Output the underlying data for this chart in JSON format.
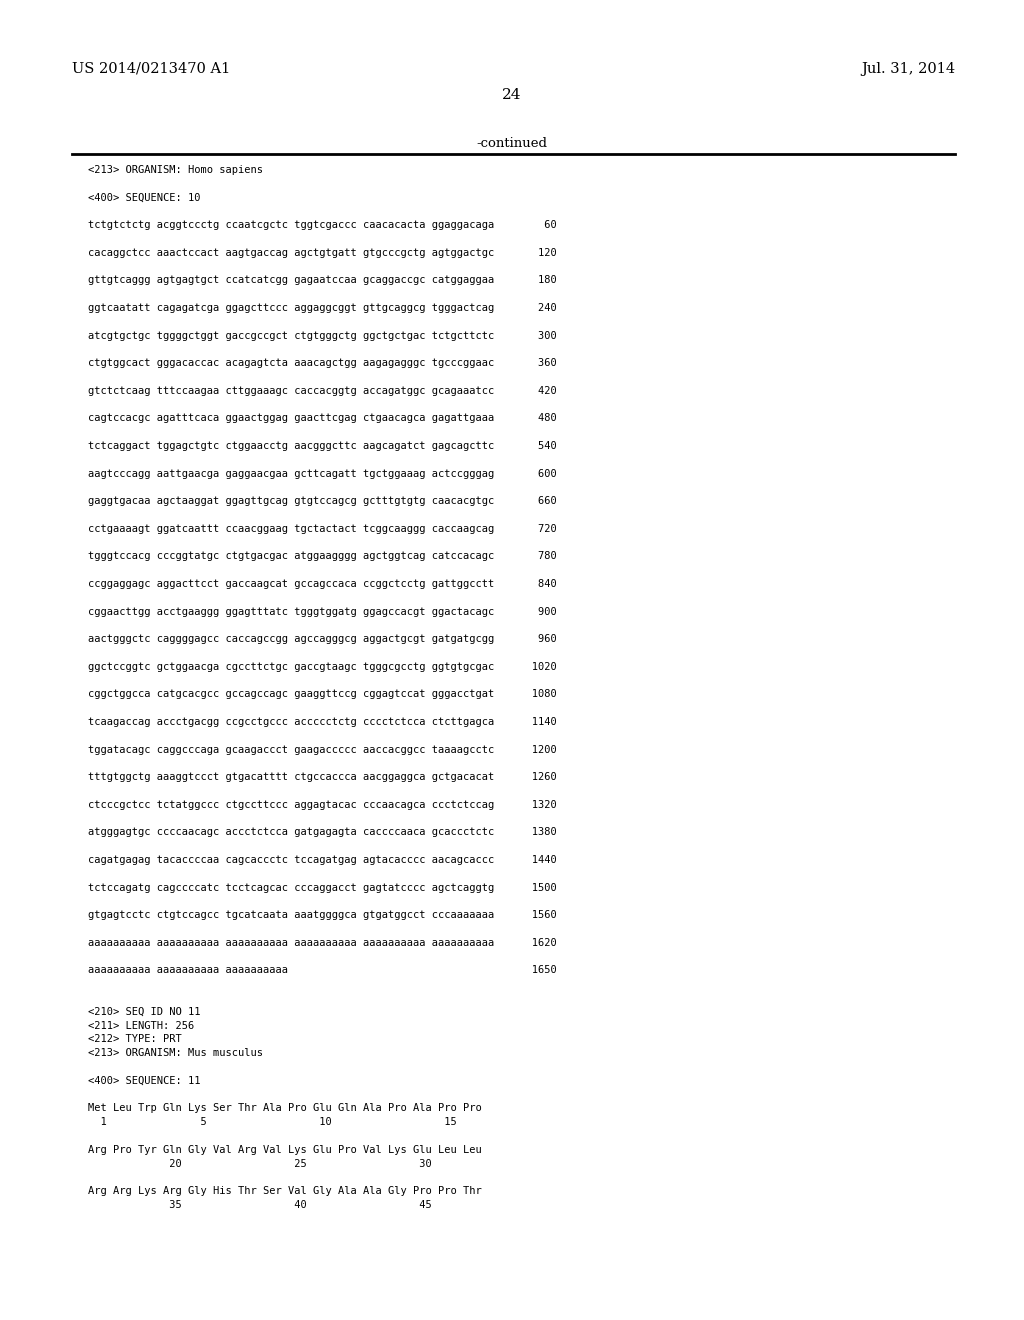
{
  "header_left": "US 2014/0213470 A1",
  "header_right": "Jul. 31, 2014",
  "page_number": "24",
  "continued_label": "-continued",
  "background_color": "#ffffff",
  "text_color": "#000000",
  "content_lines": [
    {
      "text": "<213> ORGANISM: Homo sapiens",
      "type": "mono"
    },
    {
      "text": "",
      "type": "gap"
    },
    {
      "text": "<400> SEQUENCE: 10",
      "type": "mono"
    },
    {
      "text": "",
      "type": "gap"
    },
    {
      "text": "tctgtctctg acggtccctg ccaatcgctc tggtcgaccc caacacacta ggaggacaga        60",
      "type": "mono"
    },
    {
      "text": "",
      "type": "gap"
    },
    {
      "text": "cacaggctcc aaactccact aagtgaccag agctgtgatt gtgcccgctg agtggactgc       120",
      "type": "mono"
    },
    {
      "text": "",
      "type": "gap"
    },
    {
      "text": "gttgtcaggg agtgagtgct ccatcatcgg gagaatccaa gcaggaccgc catggaggaa       180",
      "type": "mono"
    },
    {
      "text": "",
      "type": "gap"
    },
    {
      "text": "ggtcaatatt cagagatcga ggagcttccc aggaggcggt gttgcaggcg tgggactcag       240",
      "type": "mono"
    },
    {
      "text": "",
      "type": "gap"
    },
    {
      "text": "atcgtgctgc tggggctggt gaccgccgct ctgtgggctg ggctgctgac tctgcttctc       300",
      "type": "mono"
    },
    {
      "text": "",
      "type": "gap"
    },
    {
      "text": "ctgtggcact gggacaccac acagagtcta aaacagctgg aagagagggc tgcccggaac       360",
      "type": "mono"
    },
    {
      "text": "",
      "type": "gap"
    },
    {
      "text": "gtctctcaag tttccaagaa cttggaaagc caccacggtg accagatggc gcagaaatcc       420",
      "type": "mono"
    },
    {
      "text": "",
      "type": "gap"
    },
    {
      "text": "cagtccacgc agatttcaca ggaactggag gaacttcgag ctgaacagca gagattgaaa       480",
      "type": "mono"
    },
    {
      "text": "",
      "type": "gap"
    },
    {
      "text": "tctcaggact tggagctgtc ctggaacctg aacgggcttc aagcagatct gagcagcttc       540",
      "type": "mono"
    },
    {
      "text": "",
      "type": "gap"
    },
    {
      "text": "aagtcccagg aattgaacga gaggaacgaa gcttcagatt tgctggaaag actccgggag       600",
      "type": "mono"
    },
    {
      "text": "",
      "type": "gap"
    },
    {
      "text": "gaggtgacaa agctaaggat ggagttgcag gtgtccagcg gctttgtgtg caacacgtgc       660",
      "type": "mono"
    },
    {
      "text": "",
      "type": "gap"
    },
    {
      "text": "cctgaaaagt ggatcaattt ccaacggaag tgctactact tcggcaaggg caccaagcag       720",
      "type": "mono"
    },
    {
      "text": "",
      "type": "gap"
    },
    {
      "text": "tgggtccacg cccggtatgc ctgtgacgac atggaagggg agctggtcag catccacagc       780",
      "type": "mono"
    },
    {
      "text": "",
      "type": "gap"
    },
    {
      "text": "ccggaggagc aggacttcct gaccaagcat gccagccaca ccggctcctg gattggcctt       840",
      "type": "mono"
    },
    {
      "text": "",
      "type": "gap"
    },
    {
      "text": "cggaacttgg acctgaaggg ggagtttatc tgggtggatg ggagccacgt ggactacagc       900",
      "type": "mono"
    },
    {
      "text": "",
      "type": "gap"
    },
    {
      "text": "aactgggctc caggggagcc caccagccgg agccagggcg aggactgcgt gatgatgcgg       960",
      "type": "mono"
    },
    {
      "text": "",
      "type": "gap"
    },
    {
      "text": "ggctccggtc gctggaacga cgccttctgc gaccgtaagc tgggcgcctg ggtgtgcgac      1020",
      "type": "mono"
    },
    {
      "text": "",
      "type": "gap"
    },
    {
      "text": "cggctggcca catgcacgcc gccagccagc gaaggttccg cggagtccat gggacctgat      1080",
      "type": "mono"
    },
    {
      "text": "",
      "type": "gap"
    },
    {
      "text": "tcaagaccag accctgacgg ccgcctgccc accccctctg cccctctcca ctcttgagca      1140",
      "type": "mono"
    },
    {
      "text": "",
      "type": "gap"
    },
    {
      "text": "tggatacagc caggcccaga gcaagaccct gaagaccccc aaccacggcc taaaagcctc      1200",
      "type": "mono"
    },
    {
      "text": "",
      "type": "gap"
    },
    {
      "text": "tttgtggctg aaaggtccct gtgacatttt ctgccaccca aacggaggca gctgacacat      1260",
      "type": "mono"
    },
    {
      "text": "",
      "type": "gap"
    },
    {
      "text": "ctcccgctcc tctatggccc ctgccttccc aggagtacac cccaacagca ccctctccag      1320",
      "type": "mono"
    },
    {
      "text": "",
      "type": "gap"
    },
    {
      "text": "atgggagtgc ccccaacagc accctctcca gatgagagta caccccaaca gcaccctctc      1380",
      "type": "mono"
    },
    {
      "text": "",
      "type": "gap"
    },
    {
      "text": "cagatgagag tacaccccaa cagcaccctc tccagatgag agtacacccc aacagcaccc      1440",
      "type": "mono"
    },
    {
      "text": "",
      "type": "gap"
    },
    {
      "text": "tctccagatg cagccccatc tcctcagcac cccaggacct gagtatcccc agctcaggtg      1500",
      "type": "mono"
    },
    {
      "text": "",
      "type": "gap"
    },
    {
      "text": "gtgagtcctc ctgtccagcc tgcatcaata aaatggggca gtgatggcct cccaaaaaaa      1560",
      "type": "mono"
    },
    {
      "text": "",
      "type": "gap"
    },
    {
      "text": "aaaaaaaaaa aaaaaaaaaa aaaaaaaaaa aaaaaaaaaa aaaaaaaaaa aaaaaaaaaa      1620",
      "type": "mono"
    },
    {
      "text": "",
      "type": "gap"
    },
    {
      "text": "aaaaaaaaaa aaaaaaaaaa aaaaaaaaaa                                       1650",
      "type": "mono"
    },
    {
      "text": "",
      "type": "gap"
    },
    {
      "text": "",
      "type": "gap"
    },
    {
      "text": "<210> SEQ ID NO 11",
      "type": "mono"
    },
    {
      "text": "<211> LENGTH: 256",
      "type": "mono"
    },
    {
      "text": "<212> TYPE: PRT",
      "type": "mono"
    },
    {
      "text": "<213> ORGANISM: Mus musculus",
      "type": "mono"
    },
    {
      "text": "",
      "type": "gap"
    },
    {
      "text": "<400> SEQUENCE: 11",
      "type": "mono"
    },
    {
      "text": "",
      "type": "gap"
    },
    {
      "text": "Met Leu Trp Gln Lys Ser Thr Ala Pro Glu Gln Ala Pro Ala Pro Pro",
      "type": "mono"
    },
    {
      "text": "  1               5                  10                  15",
      "type": "mono"
    },
    {
      "text": "",
      "type": "gap"
    },
    {
      "text": "Arg Pro Tyr Gln Gly Val Arg Val Lys Glu Pro Val Lys Glu Leu Leu",
      "type": "mono"
    },
    {
      "text": "             20                  25                  30",
      "type": "mono"
    },
    {
      "text": "",
      "type": "gap"
    },
    {
      "text": "Arg Arg Lys Arg Gly His Thr Ser Val Gly Ala Ala Gly Pro Pro Thr",
      "type": "mono"
    },
    {
      "text": "             35                  40                  45",
      "type": "mono"
    }
  ]
}
